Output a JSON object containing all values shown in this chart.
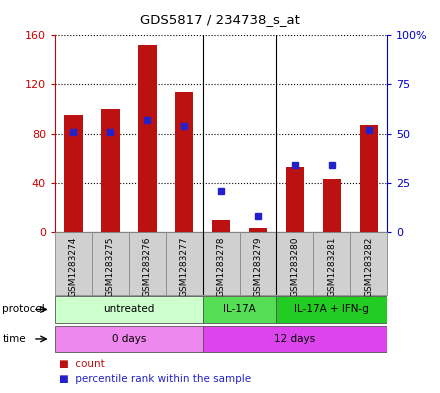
{
  "title": "GDS5817 / 234738_s_at",
  "samples": [
    "GSM1283274",
    "GSM1283275",
    "GSM1283276",
    "GSM1283277",
    "GSM1283278",
    "GSM1283279",
    "GSM1283280",
    "GSM1283281",
    "GSM1283282"
  ],
  "counts": [
    95,
    100,
    152,
    114,
    10,
    3,
    53,
    43,
    87
  ],
  "percentiles": [
    51,
    51,
    57,
    54,
    21,
    8,
    34,
    34,
    52
  ],
  "ylim_left": [
    0,
    160
  ],
  "ylim_right": [
    0,
    100
  ],
  "yticks_left": [
    0,
    40,
    80,
    120,
    160
  ],
  "ytick_labels_left": [
    "0",
    "40",
    "80",
    "120",
    "160"
  ],
  "yticks_right": [
    0,
    25,
    50,
    75,
    100
  ],
  "ytick_labels_right": [
    "0",
    "25",
    "50",
    "75",
    "100%"
  ],
  "protocol_groups": [
    {
      "label": "untreated",
      "start": 0,
      "end": 4,
      "color": "#ccffcc"
    },
    {
      "label": "IL-17A",
      "start": 4,
      "end": 6,
      "color": "#44dd44"
    },
    {
      "label": "IL-17A + IFN-g",
      "start": 6,
      "end": 9,
      "color": "#00cc00"
    }
  ],
  "time_groups": [
    {
      "label": "0 days",
      "start": 0,
      "end": 4,
      "color": "#ee88ee"
    },
    {
      "label": "12 days",
      "start": 4,
      "end": 9,
      "color": "#dd44dd"
    }
  ],
  "bar_color": "#bb1111",
  "dot_color": "#2222cc",
  "bg_color": "#ffffff",
  "sample_bg": "#d0d0d0",
  "left_axis_color": "#cc0000",
  "right_axis_color": "#0000cc",
  "separator_indices": [
    3.5,
    5.5
  ],
  "plot_bg": "#ffffff"
}
